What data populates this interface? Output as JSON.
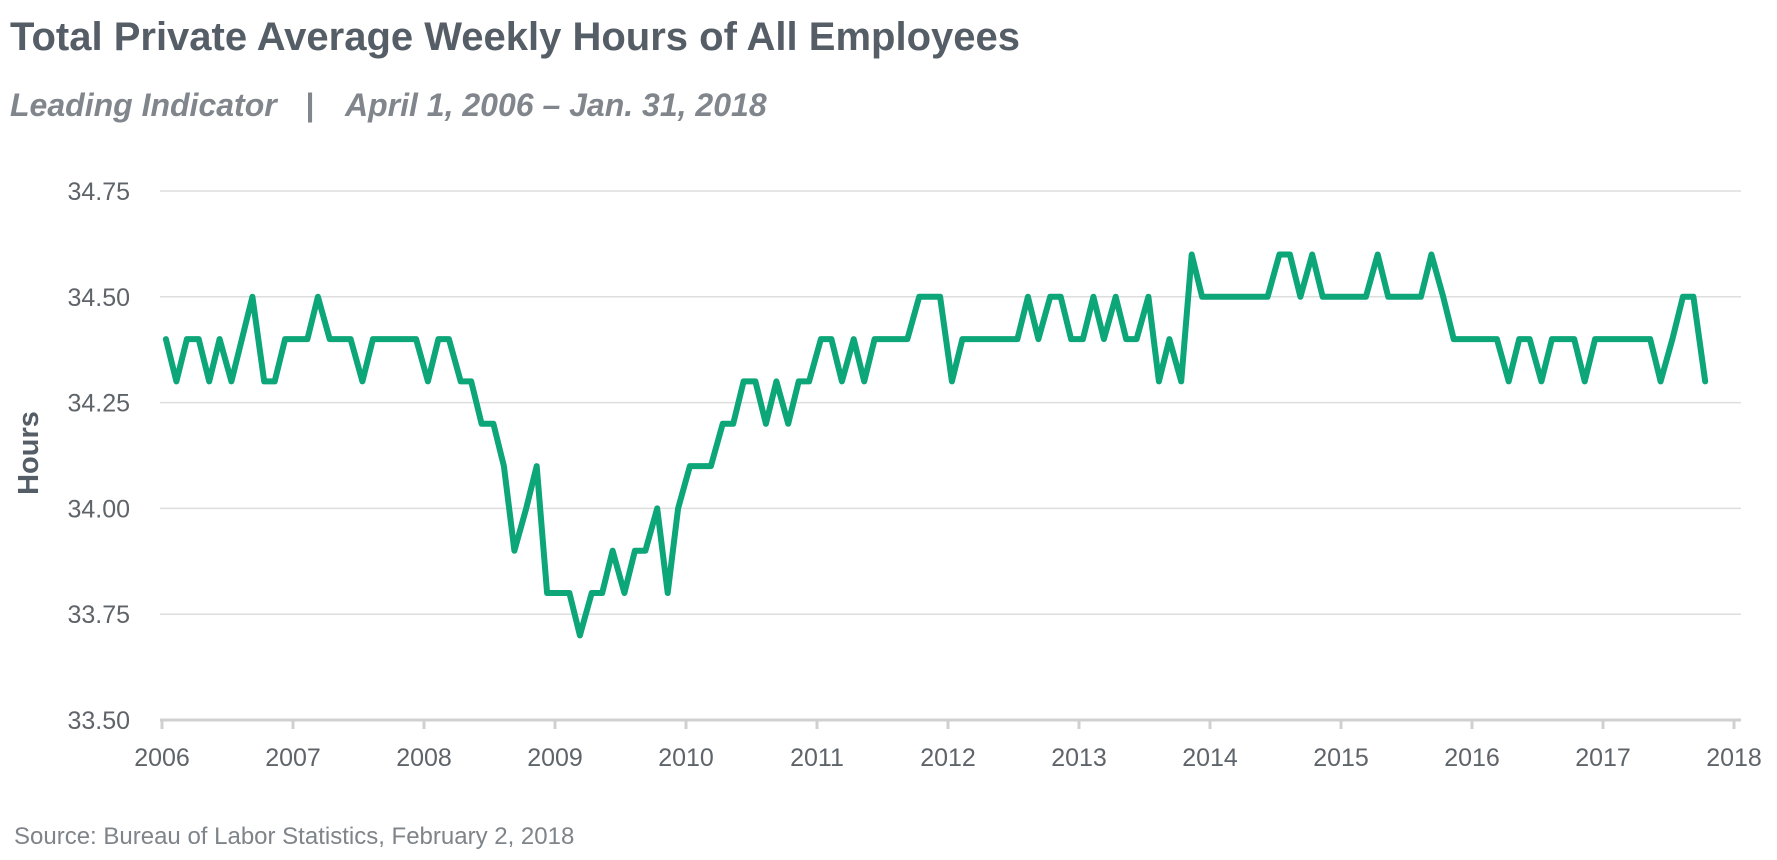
{
  "chart_data": {
    "type": "line",
    "title": "Total Private Average Weekly Hours of All Employees",
    "subtitle": {
      "left": "Leading Indicator",
      "separator": "|",
      "right": "April 1, 2006 – Jan. 31, 2018"
    },
    "ylabel": "Hours",
    "xlabel": "",
    "source": "Source: Bureau of Labor Statistics, February 2, 2018",
    "ylim": [
      33.5,
      34.75
    ],
    "xlim": [
      2006,
      2018
    ],
    "y_ticks": [
      {
        "value": 34.75,
        "label": "34.75"
      },
      {
        "value": 34.5,
        "label": "34.50"
      },
      {
        "value": 34.25,
        "label": "34.25"
      },
      {
        "value": 34.0,
        "label": "34.00"
      },
      {
        "value": 33.75,
        "label": "33.75"
      },
      {
        "value": 33.5,
        "label": "33.50"
      }
    ],
    "x_ticks": [
      {
        "value": 2006,
        "label": "2006"
      },
      {
        "value": 2007,
        "label": "2007"
      },
      {
        "value": 2008,
        "label": "2008"
      },
      {
        "value": 2009,
        "label": "2009"
      },
      {
        "value": 2010,
        "label": "2010"
      },
      {
        "value": 2011,
        "label": "2011"
      },
      {
        "value": 2012,
        "label": "2012"
      },
      {
        "value": 2013,
        "label": "2013"
      },
      {
        "value": 2014,
        "label": "2014"
      },
      {
        "value": 2015,
        "label": "2015"
      },
      {
        "value": 2016,
        "label": "2016"
      },
      {
        "value": 2017,
        "label": "2017"
      },
      {
        "value": 2018,
        "label": "2018"
      }
    ],
    "grid": true,
    "legend": "none",
    "series": [
      {
        "color": "#0ca678",
        "x": [
          2006.03,
          2006.11,
          2006.19,
          2006.28,
          2006.36,
          2006.44,
          2006.53,
          2006.61,
          2006.69,
          2006.78,
          2006.86,
          2006.94,
          2007.03,
          2007.11,
          2007.19,
          2007.28,
          2007.36,
          2007.44,
          2007.53,
          2007.61,
          2007.69,
          2007.78,
          2007.86,
          2007.94,
          2008.03,
          2008.11,
          2008.19,
          2008.28,
          2008.36,
          2008.44,
          2008.53,
          2008.61,
          2008.69,
          2008.78,
          2008.86,
          2008.94,
          2009.03,
          2009.11,
          2009.19,
          2009.28,
          2009.36,
          2009.44,
          2009.53,
          2009.61,
          2009.69,
          2009.78,
          2009.86,
          2009.94,
          2010.03,
          2010.11,
          2010.19,
          2010.28,
          2010.36,
          2010.44,
          2010.53,
          2010.61,
          2010.69,
          2010.78,
          2010.86,
          2010.94,
          2011.03,
          2011.11,
          2011.19,
          2011.28,
          2011.36,
          2011.44,
          2011.53,
          2011.61,
          2011.69,
          2011.78,
          2011.86,
          2011.94,
          2012.03,
          2012.11,
          2012.19,
          2012.28,
          2012.36,
          2012.44,
          2012.53,
          2012.61,
          2012.69,
          2012.78,
          2012.86,
          2012.94,
          2013.03,
          2013.11,
          2013.19,
          2013.28,
          2013.36,
          2013.44,
          2013.53,
          2013.61,
          2013.69,
          2013.78,
          2013.86,
          2013.94,
          2014.03,
          2014.11,
          2014.19,
          2014.28,
          2014.36,
          2014.44,
          2014.53,
          2014.61,
          2014.69,
          2014.78,
          2014.86,
          2014.94,
          2015.03,
          2015.11,
          2015.19,
          2015.28,
          2015.36,
          2015.44,
          2015.53,
          2015.61,
          2015.69,
          2015.78,
          2015.86,
          2015.94,
          2016.03,
          2016.11,
          2016.19,
          2016.28,
          2016.36,
          2016.44,
          2016.53,
          2016.61,
          2016.69,
          2016.78,
          2016.86,
          2016.94,
          2017.03,
          2017.11,
          2017.19,
          2017.28,
          2017.36,
          2017.44,
          2017.53,
          2017.61,
          2017.69,
          2017.78
        ],
        "values": [
          34.4,
          34.3,
          34.4,
          34.4,
          34.3,
          34.4,
          34.3,
          34.4,
          34.5,
          34.3,
          34.3,
          34.4,
          34.4,
          34.4,
          34.5,
          34.4,
          34.4,
          34.4,
          34.3,
          34.4,
          34.4,
          34.4,
          34.4,
          34.4,
          34.3,
          34.4,
          34.4,
          34.3,
          34.3,
          34.2,
          34.2,
          34.1,
          33.9,
          34.0,
          34.1,
          33.8,
          33.8,
          33.8,
          33.7,
          33.8,
          33.8,
          33.9,
          33.8,
          33.9,
          33.9,
          34.0,
          33.8,
          34.0,
          34.1,
          34.1,
          34.1,
          34.2,
          34.2,
          34.3,
          34.3,
          34.2,
          34.3,
          34.2,
          34.3,
          34.3,
          34.4,
          34.4,
          34.3,
          34.4,
          34.3,
          34.4,
          34.4,
          34.4,
          34.4,
          34.5,
          34.5,
          34.5,
          34.3,
          34.4,
          34.4,
          34.4,
          34.4,
          34.4,
          34.4,
          34.5,
          34.4,
          34.5,
          34.5,
          34.4,
          34.4,
          34.5,
          34.4,
          34.5,
          34.4,
          34.4,
          34.5,
          34.3,
          34.4,
          34.3,
          34.6,
          34.5,
          34.5,
          34.5,
          34.5,
          34.5,
          34.5,
          34.5,
          34.6,
          34.6,
          34.5,
          34.6,
          34.5,
          34.5,
          34.5,
          34.5,
          34.5,
          34.6,
          34.5,
          34.5,
          34.5,
          34.5,
          34.6,
          34.5,
          34.4,
          34.4,
          34.4,
          34.4,
          34.4,
          34.3,
          34.4,
          34.4,
          34.3,
          34.4,
          34.4,
          34.4,
          34.3,
          34.4,
          34.4,
          34.4,
          34.4,
          34.4,
          34.4,
          34.3,
          34.4,
          34.5,
          34.5,
          34.3
        ]
      }
    ]
  }
}
